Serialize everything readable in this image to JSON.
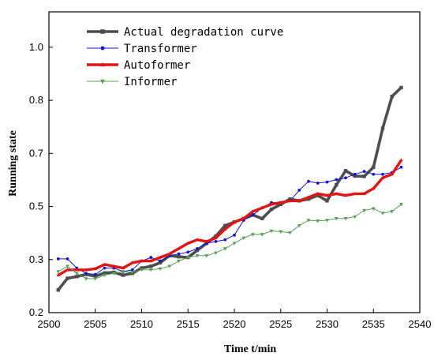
{
  "chart_data": {
    "type": "line",
    "title": "",
    "xlabel": "Time t/min",
    "ylabel": "Running state",
    "xlim": [
      2500,
      2540
    ],
    "ylim": [
      0.2,
      1.05
    ],
    "x_ticks": [
      2500,
      2505,
      2510,
      2515,
      2520,
      2525,
      2530,
      2535,
      2540
    ],
    "x_tick_labels": [
      "2500",
      "2505",
      "2510",
      "2515",
      "2520",
      "2525",
      "2530",
      "2535",
      "2540"
    ],
    "y_ticks": [
      0.2,
      0.35,
      0.5,
      0.65,
      0.8,
      0.95
    ],
    "y_tick_labels": [
      "0.2",
      "0.3",
      "0.5",
      "0.7",
      "0.8",
      "1.0"
    ],
    "legend_position": "top-left",
    "x": [
      2501,
      2502,
      2503,
      2504,
      2505,
      2506,
      2507,
      2508,
      2509,
      2510,
      2511,
      2512,
      2513,
      2514,
      2515,
      2516,
      2517,
      2518,
      2519,
      2520,
      2521,
      2522,
      2523,
      2524,
      2525,
      2526,
      2527,
      2528,
      2529,
      2530,
      2531,
      2532,
      2533,
      2534,
      2535,
      2536,
      2537,
      2538
    ],
    "series": [
      {
        "name": "Actual degradation curve",
        "color": "#4d4d4d",
        "marker": "square",
        "values": [
          0.264,
          0.297,
          0.302,
          0.308,
          0.303,
          0.312,
          0.314,
          0.306,
          0.311,
          0.326,
          0.331,
          0.341,
          0.361,
          0.358,
          0.356,
          0.376,
          0.396,
          0.416,
          0.446,
          0.456,
          0.466,
          0.476,
          0.466,
          0.492,
          0.506,
          0.521,
          0.516,
          0.521,
          0.531,
          0.516,
          0.561,
          0.601,
          0.586,
          0.585,
          0.611,
          0.721,
          0.811,
          0.836
        ]
      },
      {
        "name": "Transformer",
        "color": "#1515cc",
        "marker": "circle",
        "values": [
          0.352,
          0.352,
          0.326,
          0.311,
          0.308,
          0.326,
          0.326,
          0.316,
          0.321,
          0.346,
          0.356,
          0.346,
          0.361,
          0.366,
          0.371,
          0.381,
          0.396,
          0.401,
          0.406,
          0.419,
          0.461,
          0.476,
          0.496,
          0.511,
          0.511,
          0.516,
          0.546,
          0.571,
          0.566,
          0.569,
          0.576,
          0.581,
          0.591,
          0.599,
          0.591,
          0.591,
          0.596,
          0.611
        ]
      },
      {
        "name": "Autoformer",
        "color": "#e01515",
        "marker": "triangle-up",
        "values": [
          0.306,
          0.321,
          0.321,
          0.321,
          0.324,
          0.336,
          0.331,
          0.326,
          0.341,
          0.346,
          0.346,
          0.356,
          0.366,
          0.381,
          0.396,
          0.406,
          0.401,
          0.411,
          0.436,
          0.456,
          0.466,
          0.486,
          0.496,
          0.506,
          0.511,
          0.516,
          0.516,
          0.526,
          0.536,
          0.531,
          0.536,
          0.531,
          0.536,
          0.536,
          0.551,
          0.581,
          0.591,
          0.631
        ]
      },
      {
        "name": "Informer",
        "color": "#5a9e5a",
        "marker": "triangle-down",
        "values": [
          0.316,
          0.331,
          0.311,
          0.296,
          0.296,
          0.306,
          0.311,
          0.316,
          0.314,
          0.321,
          0.321,
          0.324,
          0.331,
          0.346,
          0.356,
          0.361,
          0.361,
          0.369,
          0.381,
          0.396,
          0.411,
          0.421,
          0.421,
          0.431,
          0.429,
          0.426,
          0.446,
          0.461,
          0.459,
          0.461,
          0.466,
          0.466,
          0.471,
          0.489,
          0.494,
          0.481,
          0.486,
          0.506
        ]
      }
    ]
  }
}
